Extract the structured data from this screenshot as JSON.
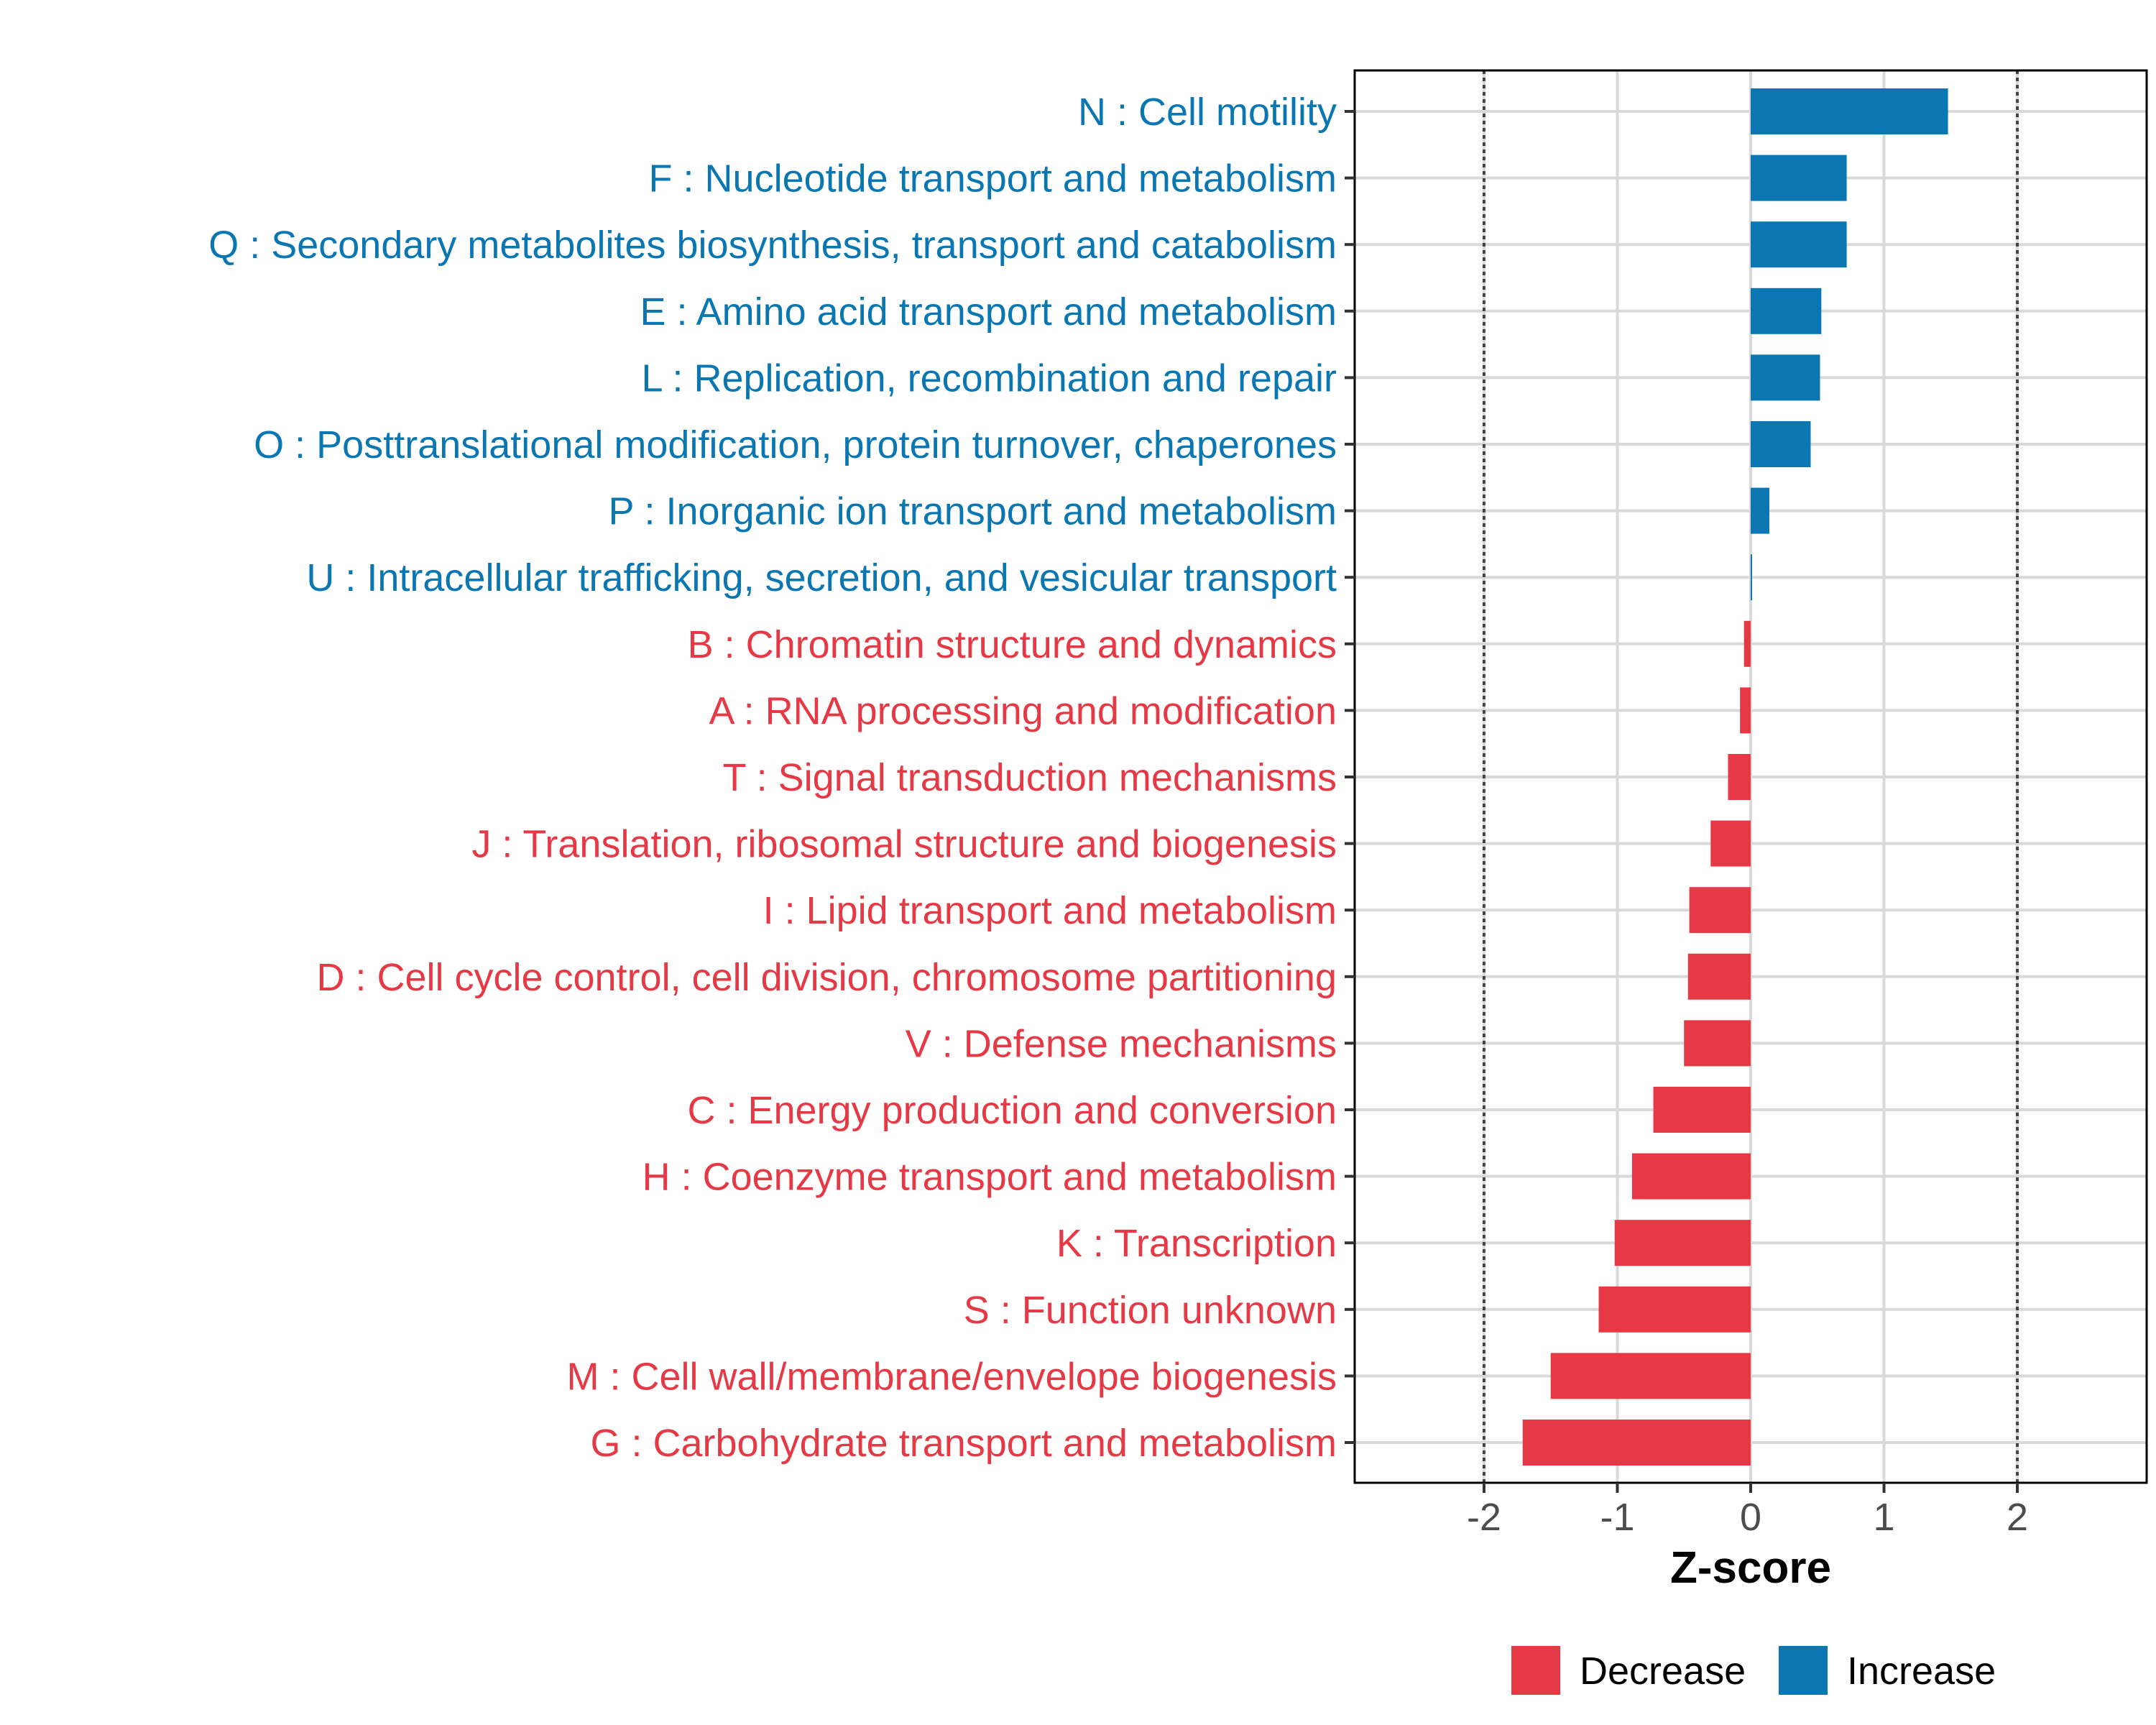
{
  "chart_data": {
    "type": "bar",
    "orientation": "horizontal",
    "title": "",
    "xlabel": "Z-score",
    "ylabel": "",
    "xlim": [
      -2.97,
      2.97
    ],
    "x_ticks": [
      -2,
      -1,
      0,
      1,
      2
    ],
    "x_tick_labels": [
      "-2",
      "-1",
      "0",
      "1",
      "2"
    ],
    "reference_lines": [
      -2,
      2
    ],
    "grid": true,
    "legend_position": "bottom",
    "colors": {
      "Decrease": "#E63946",
      "Increase": "#0A77B3"
    },
    "legend": [
      {
        "label": "Decrease",
        "color": "#E63946"
      },
      {
        "label": "Increase",
        "color": "#0A77B3"
      }
    ],
    "categories": [
      "N : Cell motility",
      "F : Nucleotide transport and metabolism",
      "Q : Secondary metabolites biosynthesis, transport and catabolism",
      "E : Amino acid transport and metabolism",
      "L : Replication, recombination and repair",
      "O : Posttranslational modification, protein turnover, chaperones",
      "P : Inorganic ion transport and metabolism",
      "U : Intracellular trafficking, secretion, and vesicular transport",
      "B : Chromatin structure and dynamics",
      "A : RNA processing and modification",
      "T : Signal transduction mechanisms",
      "J : Translation, ribosomal structure and biogenesis",
      "I : Lipid transport and metabolism",
      "D : Cell cycle control, cell division, chromosome partitioning",
      "V : Defense mechanisms",
      "C : Energy production and conversion",
      "H : Coenzyme transport and metabolism",
      "K : Transcription",
      "S : Function unknown",
      "M : Cell wall/membrane/envelope biogenesis",
      "G : Carbohydrate transport and metabolism"
    ],
    "values": [
      1.48,
      0.72,
      0.72,
      0.53,
      0.52,
      0.45,
      0.14,
      0.01,
      -0.05,
      -0.08,
      -0.17,
      -0.3,
      -0.46,
      -0.47,
      -0.5,
      -0.73,
      -0.89,
      -1.02,
      -1.14,
      -1.5,
      -1.71
    ],
    "groups": [
      "Increase",
      "Increase",
      "Increase",
      "Increase",
      "Increase",
      "Increase",
      "Increase",
      "Increase",
      "Decrease",
      "Decrease",
      "Decrease",
      "Decrease",
      "Decrease",
      "Decrease",
      "Decrease",
      "Decrease",
      "Decrease",
      "Decrease",
      "Decrease",
      "Decrease",
      "Decrease"
    ]
  }
}
